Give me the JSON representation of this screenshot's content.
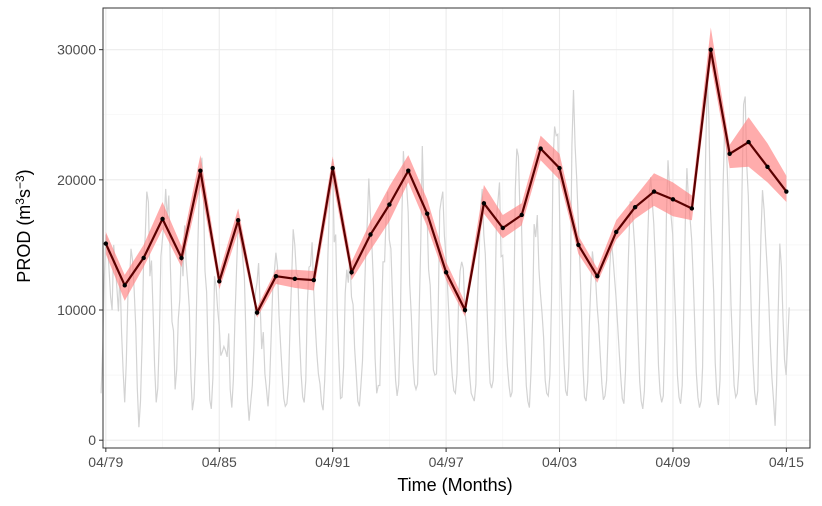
{
  "chart_data": {
    "type": "line",
    "xlabel": "Time (Months)",
    "ylabel": "PROD (m3s−3)",
    "ylabel_parts": {
      "base": "PROD (m",
      "sup1": "3",
      "mid": "s",
      "sup2": "−3",
      "end": ")"
    },
    "xlim": [
      1979.1,
      2016.5
    ],
    "ylim": [
      -600,
      33200
    ],
    "x_ticks": [
      {
        "value": 1979.25,
        "label": "04/79"
      },
      {
        "value": 1985.25,
        "label": "04/85"
      },
      {
        "value": 1991.25,
        "label": "04/91"
      },
      {
        "value": 1997.25,
        "label": "04/97"
      },
      {
        "value": 2003.25,
        "label": "04/03"
      },
      {
        "value": 2009.25,
        "label": "04/09"
      },
      {
        "value": 2015.25,
        "label": "04/15"
      }
    ],
    "y_ticks": [
      {
        "value": 0,
        "label": "0"
      },
      {
        "value": 10000,
        "label": "10000"
      },
      {
        "value": 20000,
        "label": "20000"
      },
      {
        "value": 30000,
        "label": "30000"
      }
    ],
    "grid": true,
    "colors": {
      "monthly": "#d3d3d3",
      "band": "#ff8080",
      "mean": "#5a0000",
      "grid": "#ebebeb",
      "frame": "#333333"
    },
    "annual": {
      "x": [
        1979.25,
        1980.25,
        1981.25,
        1982.25,
        1983.25,
        1984.25,
        1985.25,
        1986.25,
        1987.25,
        1988.25,
        1989.25,
        1990.25,
        1991.25,
        1992.25,
        1993.25,
        1994.25,
        1995.25,
        1996.25,
        1997.25,
        1998.25,
        1999.25,
        2000.25,
        2001.25,
        2002.25,
        2003.25,
        2004.25,
        2005.25,
        2006.25,
        2007.25,
        2008.25,
        2009.25,
        2010.25,
        2011.25,
        2012.25,
        2013.25,
        2014.25,
        2015.25
      ],
      "mean": [
        15100,
        11900,
        14000,
        17000,
        14000,
        20700,
        12200,
        16900,
        9800,
        12600,
        12400,
        12300,
        20900,
        12900,
        15800,
        18100,
        20700,
        17400,
        12900,
        10000,
        18200,
        16300,
        17300,
        22400,
        20900,
        15000,
        12600,
        16000,
        17900,
        19100,
        18500,
        17800,
        30000,
        22000,
        22900,
        21000,
        19100
      ],
      "lower": [
        14300,
        10700,
        13300,
        16200,
        13300,
        19500,
        11600,
        16000,
        9400,
        12000,
        11700,
        11500,
        19900,
        12300,
        14600,
        16800,
        19800,
        16400,
        12300,
        9500,
        17400,
        15500,
        16500,
        21500,
        20000,
        14300,
        12100,
        15400,
        17000,
        18000,
        17200,
        16900,
        29000,
        20900,
        21000,
        19800,
        18300
      ],
      "upper": [
        16000,
        12700,
        15000,
        18300,
        14900,
        21900,
        12900,
        17800,
        10200,
        13100,
        13100,
        13000,
        21800,
        13700,
        16800,
        19500,
        21900,
        18500,
        13700,
        10600,
        19600,
        17300,
        18200,
        23400,
        22000,
        15700,
        13200,
        16900,
        18700,
        20500,
        19800,
        18800,
        31700,
        22700,
        24800,
        22800,
        20300
      ]
    },
    "monthly": {
      "x_start": 1979.0,
      "step": 0.0833,
      "y": [
        3600,
        7000,
        12500,
        15800,
        15200,
        13200,
        11000,
        10000,
        15000,
        13500,
        11700,
        9900,
        12800,
        8200,
        5200,
        2900,
        6000,
        11100,
        12200,
        14700,
        13800,
        11500,
        8600,
        4000,
        1000,
        3000,
        7500,
        13900,
        15600,
        19100,
        18300,
        12600,
        13800,
        9800,
        5700,
        2900,
        4000,
        8100,
        14100,
        15500,
        16800,
        19300,
        17000,
        18800,
        13300,
        9100,
        8400,
        3900,
        5400,
        9300,
        10800,
        14800,
        12600,
        16500,
        13700,
        12100,
        10200,
        4900,
        2300,
        3200,
        6600,
        12900,
        17600,
        20900,
        21700,
        18600,
        13000,
        11400,
        6600,
        3100,
        2400,
        4800,
        12600,
        11800,
        10100,
        8800,
        6500,
        6800,
        7200,
        6900,
        6400,
        8200,
        3900,
        2500,
        4700,
        9500,
        13000,
        16600,
        15900,
        15200,
        13900,
        12500,
        7800,
        3200,
        1500,
        2900,
        4200,
        7100,
        11300,
        12100,
        13600,
        10300,
        7000,
        8300,
        5100,
        3900,
        2600,
        4400,
        8000,
        11600,
        12900,
        14400,
        13300,
        9600,
        7300,
        5100,
        3200,
        2600,
        2800,
        4300,
        9000,
        12300,
        16200,
        15000,
        12800,
        12600,
        8000,
        5100,
        3300,
        2900,
        4600,
        10600,
        13300,
        13400,
        15200,
        11500,
        8800,
        6700,
        5100,
        4300,
        2800,
        2300,
        4600,
        8300,
        14200,
        18000,
        20200,
        21600,
        15200,
        15800,
        9700,
        6200,
        3200,
        3300,
        5600,
        11300,
        13100,
        12100,
        14000,
        11000,
        10400,
        7100,
        5100,
        3000,
        2600,
        4200,
        6100,
        10400,
        14300,
        16600,
        20100,
        17400,
        14800,
        11900,
        6300,
        3600,
        4200,
        4200,
        9000,
        13700,
        13700,
        17200,
        19100,
        15400,
        14700,
        11200,
        7700,
        4600,
        3400,
        4300,
        8700,
        17300,
        22200,
        19800,
        19600,
        17500,
        12000,
        9600,
        6200,
        4300,
        3900,
        4300,
        9800,
        15300,
        22600,
        17600,
        17000,
        17300,
        13100,
        11900,
        8500,
        5400,
        5000,
        5100,
        9400,
        17600,
        18400,
        19100,
        15700,
        14100,
        11900,
        9200,
        6800,
        4900,
        3800,
        3600,
        5100,
        10900,
        13000,
        13700,
        13200,
        9900,
        8900,
        7300,
        5000,
        3600,
        3300,
        3000,
        4300,
        11000,
        14100,
        17700,
        19300,
        15800,
        14300,
        10500,
        7000,
        4400,
        4000,
        4600,
        8800,
        17100,
        18300,
        19800,
        14100,
        14200,
        11600,
        8000,
        5700,
        4200,
        3300,
        3700,
        9300,
        19200,
        22400,
        21800,
        17500,
        16700,
        11100,
        7700,
        4200,
        3000,
        2500,
        5200,
        9400,
        16600,
        15600,
        17300,
        13200,
        11300,
        9800,
        7900,
        4600,
        3600,
        3400,
        5000,
        10700,
        21300,
        24100,
        23400,
        23500,
        18500,
        12300,
        8900,
        5900,
        3800,
        3400,
        5600,
        12100,
        22600,
        26900,
        22600,
        20100,
        17000,
        13800,
        10000,
        5600,
        3300,
        3000,
        4500,
        8800,
        11900,
        14500,
        13300,
        12400,
        10300,
        8800,
        6500,
        4300,
        3100,
        3400,
        4600,
        8500,
        13200,
        15300,
        14100,
        12500,
        11000,
        8900,
        6800,
        4800,
        3200,
        2800,
        5300,
        10500,
        14500,
        18300,
        18300,
        16400,
        14600,
        11300,
        7900,
        4500,
        3000,
        2400,
        3800,
        8100,
        15000,
        18800,
        20200,
        18400,
        16600,
        13600,
        9700,
        5700,
        3600,
        2900,
        3400,
        7900,
        17200,
        21500,
        19300,
        17200,
        15800,
        12100,
        8800,
        5000,
        3300,
        2800,
        4200,
        9800,
        16800,
        20900,
        18400,
        17100,
        15500,
        12500,
        8800,
        5200,
        3300,
        2500,
        3000,
        5600,
        14900,
        22700,
        27800,
        24600,
        17800,
        14500,
        11300,
        6000,
        3500,
        2700,
        4600,
        11300,
        19600,
        24200,
        22900,
        19500,
        15600,
        10400,
        7200,
        4200,
        3300,
        3600,
        5400,
        11200,
        19200,
        25800,
        26400,
        21200,
        18800,
        13800,
        9100,
        6000,
        3700,
        2700,
        3800,
        9900,
        15600,
        19200,
        17700,
        15400,
        13200,
        10600,
        7400,
        4800,
        3100,
        1100,
        4300,
        9800,
        15100,
        13300,
        9600,
        6200,
        5000,
        7600,
        10200
      ]
    }
  }
}
